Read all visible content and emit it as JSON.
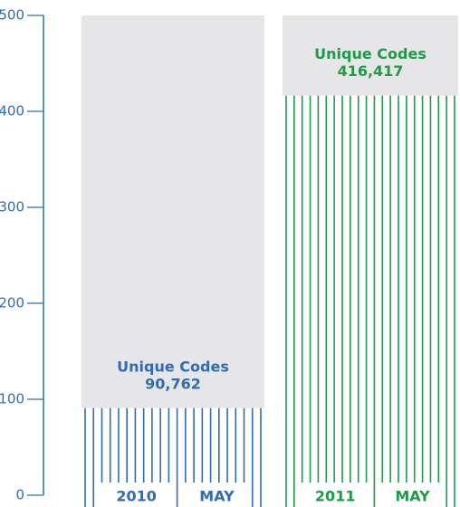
{
  "chart_data": {
    "type": "bar",
    "categories": [
      "2010",
      "2011"
    ],
    "category_sublabels": [
      "MAY",
      "MAY"
    ],
    "value_caption": "Unique Codes",
    "values": [
      90.762,
      416.417
    ],
    "value_labels": [
      "90,762",
      "416,417"
    ],
    "colors": [
      "#2e6db4",
      "#1f9a46"
    ],
    "ylim": [
      0,
      500
    ],
    "yticks": [
      0,
      100,
      200,
      300,
      400,
      500
    ]
  }
}
